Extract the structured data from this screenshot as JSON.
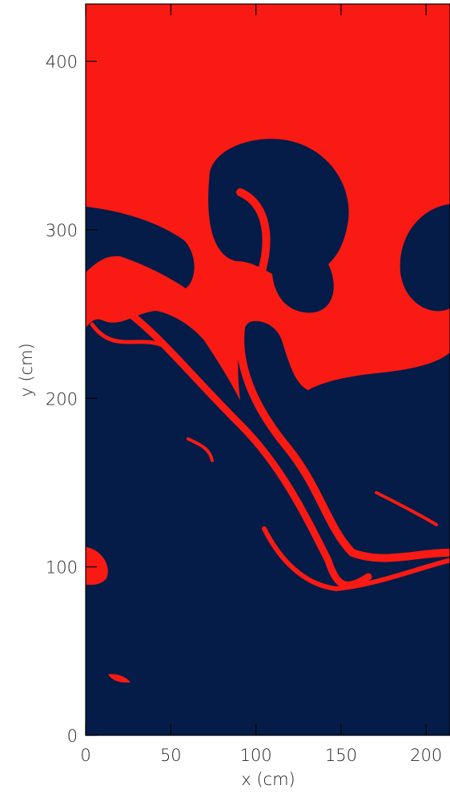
{
  "chart_data": {
    "type": "image",
    "xlabel": "x (cm)",
    "ylabel": "y (cm)",
    "xlim": [
      0,
      214
    ],
    "ylim": [
      0,
      434
    ],
    "xticks": [
      0,
      50,
      100,
      150,
      200
    ],
    "yticks": [
      0,
      100,
      200,
      300,
      400
    ]
  }
}
